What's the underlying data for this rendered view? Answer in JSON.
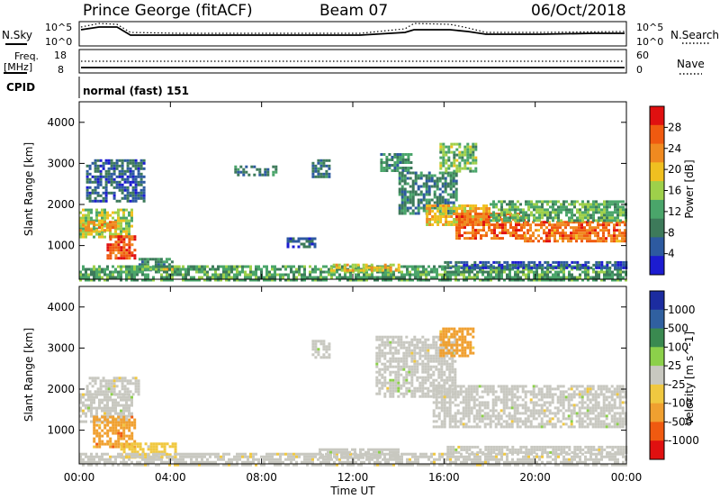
{
  "header": {
    "title": "Prince George (fitACF)",
    "beam": "Beam 07",
    "date": "06/Oct/2018"
  },
  "left_labels": {
    "nsky": "N.Sky",
    "freq_line1": "Freq.",
    "freq_line2": "[MHz]",
    "cpid": "CPID"
  },
  "right_labels": {
    "nsearch": "N.Search",
    "nave": "Nave"
  },
  "cpid_text": "normal (fast) 151",
  "noise_panel": {
    "ytick_top": "10^5",
    "ytick_bottom": "10^0",
    "rtick_top": "10^5",
    "rtick_bottom": "10^0"
  },
  "freq_panel": {
    "ytick_top": "18",
    "ytick_bottom": "8",
    "rtick_top": "60",
    "rtick_bottom": "0"
  },
  "colors": {
    "power_scale": [
      "#1c1cd0",
      "#2d5aa0",
      "#3d7a5a",
      "#4aa56a",
      "#9ed04a",
      "#f0c020",
      "#f08a20",
      "#f05a10",
      "#e01010"
    ],
    "velocity_scale": [
      "#e01010",
      "#f05a10",
      "#f0a030",
      "#f0c840",
      "#c8c8c0",
      "#8cd04a",
      "#3a8a50",
      "#3060a0",
      "#1c2ca0"
    ]
  },
  "chart_data": [
    {
      "type": "heatmap",
      "title": "",
      "ylabel": "Slant Range [km]",
      "xlabel": "Time UT",
      "x_ticks": [
        "00:00",
        "04:00",
        "08:00",
        "12:00",
        "16:00",
        "20:00",
        "00:00"
      ],
      "x_range_hours": [
        0,
        24
      ],
      "y_ticks": [
        "1000",
        "2000",
        "3000",
        "4000"
      ],
      "ylim": [
        180,
        4500
      ],
      "colorbar": {
        "label": "Power [dB]",
        "ticks": [
          "4",
          "8",
          "12",
          "16",
          "20",
          "24",
          "28"
        ],
        "range": [
          0,
          32
        ]
      },
      "regions": [
        {
          "t0": 0.0,
          "t1": 2.3,
          "r0": 1200,
          "r1": 1900,
          "value": 16
        },
        {
          "t0": 0.0,
          "t1": 1.6,
          "r0": 1350,
          "r1": 1600,
          "value": 22
        },
        {
          "t0": 1.2,
          "t1": 2.4,
          "r0": 700,
          "r1": 1250,
          "value": 27
        },
        {
          "t0": 0.3,
          "t1": 2.8,
          "r0": 2100,
          "r1": 3100,
          "value": 6
        },
        {
          "t0": 2.6,
          "t1": 4.1,
          "r0": 400,
          "r1": 700,
          "value": 10
        },
        {
          "t0": 3.5,
          "t1": 4.5,
          "r0": 420,
          "r1": 520,
          "value": 18
        },
        {
          "t0": 6.8,
          "t1": 8.6,
          "r0": 2700,
          "r1": 2950,
          "value": 8
        },
        {
          "t0": 9.1,
          "t1": 10.3,
          "r0": 1000,
          "r1": 1200,
          "value": 6
        },
        {
          "t0": 10.2,
          "t1": 11.0,
          "r0": 2700,
          "r1": 3100,
          "value": 8
        },
        {
          "t0": 13.2,
          "t1": 14.6,
          "r0": 2800,
          "r1": 3250,
          "value": 10
        },
        {
          "t0": 14.0,
          "t1": 16.5,
          "r0": 1800,
          "r1": 2800,
          "value": 9
        },
        {
          "t0": 15.2,
          "t1": 18.0,
          "r0": 1500,
          "r1": 2000,
          "value": 20
        },
        {
          "t0": 16.5,
          "t1": 19.5,
          "r0": 1200,
          "r1": 1800,
          "value": 26
        },
        {
          "t0": 19.5,
          "t1": 24.0,
          "r0": 1100,
          "r1": 1600,
          "value": 25
        },
        {
          "t0": 18.0,
          "t1": 24.0,
          "r0": 1600,
          "r1": 2100,
          "value": 13
        },
        {
          "t0": 15.8,
          "t1": 17.4,
          "r0": 2800,
          "r1": 3500,
          "value": 14
        },
        {
          "t0": 0.0,
          "t1": 24.0,
          "r0": 180,
          "r1": 520,
          "value": 12
        },
        {
          "t0": 11.0,
          "t1": 14.0,
          "r0": 420,
          "r1": 560,
          "value": 19
        },
        {
          "t0": 16.0,
          "t1": 24.0,
          "r0": 480,
          "r1": 620,
          "value": 5
        }
      ]
    },
    {
      "type": "heatmap",
      "title": "",
      "ylabel": "Slant Range [km]",
      "xlabel": "Time UT",
      "x_ticks": [
        "00:00",
        "04:00",
        "08:00",
        "12:00",
        "16:00",
        "20:00",
        "00:00"
      ],
      "x_range_hours": [
        0,
        24
      ],
      "y_ticks": [
        "1000",
        "2000",
        "3000",
        "4000"
      ],
      "ylim": [
        180,
        4500
      ],
      "colorbar": {
        "label": "Velocity [m s^-1]",
        "ticks": [
          "1000",
          "500",
          "100",
          "25",
          "-25",
          "-100",
          "-500",
          "-1000"
        ],
        "range": [
          -1000,
          1000
        ]
      },
      "regions": [
        {
          "t0": 0.0,
          "t1": 2.3,
          "r0": 1200,
          "r1": 1900,
          "value": 0
        },
        {
          "t0": 0.3,
          "t1": 2.6,
          "r0": 1900,
          "r1": 2300,
          "value": 0
        },
        {
          "t0": 0.6,
          "t1": 2.4,
          "r0": 600,
          "r1": 1350,
          "value": -450
        },
        {
          "t0": 1.8,
          "t1": 4.2,
          "r0": 350,
          "r1": 700,
          "value": -200
        },
        {
          "t0": 10.2,
          "t1": 11.0,
          "r0": 2800,
          "r1": 3200,
          "value": 0
        },
        {
          "t0": 13.0,
          "t1": 16.5,
          "r0": 1800,
          "r1": 3300,
          "value": 0
        },
        {
          "t0": 15.5,
          "t1": 24.0,
          "r0": 1100,
          "r1": 2100,
          "value": 0
        },
        {
          "t0": 15.8,
          "t1": 17.3,
          "r0": 2800,
          "r1": 3500,
          "value": -400
        },
        {
          "t0": 0.0,
          "t1": 24.0,
          "r0": 180,
          "r1": 450,
          "value": -80
        },
        {
          "t0": 10.5,
          "t1": 14.0,
          "r0": 350,
          "r1": 560,
          "value": 60
        },
        {
          "t0": 16.0,
          "t1": 24.0,
          "r0": 480,
          "r1": 620,
          "value": 0
        }
      ]
    }
  ]
}
